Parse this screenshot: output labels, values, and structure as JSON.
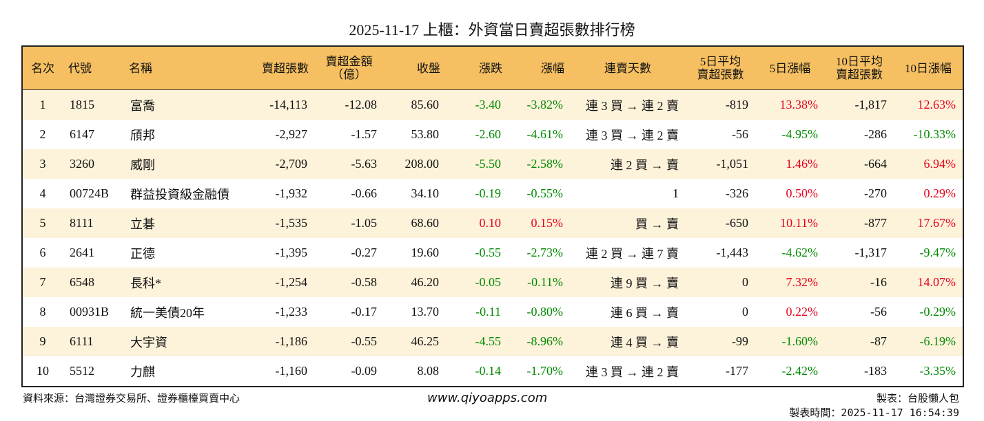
{
  "header": {
    "title": "2025-11-17 上櫃：外資當日賣超張數排行榜"
  },
  "colors": {
    "up": "#e8001c",
    "down": "#008a00"
  },
  "table": {
    "columns": [
      [
        "名次"
      ],
      [
        "代號"
      ],
      [
        "名稱"
      ],
      [
        "賣超張數"
      ],
      [
        "賣超金額",
        "（億）"
      ],
      [
        "收盤"
      ],
      [
        "漲跌"
      ],
      [
        "漲幅"
      ],
      [
        "連賣天數"
      ],
      [
        "5日平均",
        "賣超張數"
      ],
      [
        "5日漲幅"
      ],
      [
        "10日平均",
        "賣超張數"
      ],
      [
        "10日漲幅"
      ]
    ],
    "rows": [
      [
        "1",
        "1815",
        "富喬",
        "-14,113",
        "-12.08",
        "85.60",
        "-3.40",
        "-3.82%",
        "連 3 買 → 連 2 賣",
        "-819",
        "13.38%",
        "-1,817",
        "12.63%"
      ],
      [
        "2",
        "6147",
        "頎邦",
        "-2,927",
        "-1.57",
        "53.80",
        "-2.60",
        "-4.61%",
        "連 3 買 → 連 2 賣",
        "-56",
        "-4.95%",
        "-286",
        "-10.33%"
      ],
      [
        "3",
        "3260",
        "威剛",
        "-2,709",
        "-5.63",
        "208.00",
        "-5.50",
        "-2.58%",
        "連 2 買 → 賣",
        "-1,051",
        "1.46%",
        "-664",
        "6.94%"
      ],
      [
        "4",
        "00724B",
        "群益投資級金融債",
        "-1,932",
        "-0.66",
        "34.10",
        "-0.19",
        "-0.55%",
        "1",
        "-326",
        "0.50%",
        "-270",
        "0.29%"
      ],
      [
        "5",
        "8111",
        "立碁",
        "-1,535",
        "-1.05",
        "68.60",
        "0.10",
        "0.15%",
        "買 → 賣",
        "-650",
        "10.11%",
        "-877",
        "17.67%"
      ],
      [
        "6",
        "2641",
        "正德",
        "-1,395",
        "-0.27",
        "19.60",
        "-0.55",
        "-2.73%",
        "連 2 買 → 連 7 賣",
        "-1,443",
        "-4.62%",
        "-1,317",
        "-9.47%"
      ],
      [
        "7",
        "6548",
        "長科*",
        "-1,254",
        "-0.58",
        "46.20",
        "-0.05",
        "-0.11%",
        "連 9 買 → 賣",
        "0",
        "7.32%",
        "-16",
        "14.07%"
      ],
      [
        "8",
        "00931B",
        "統一美債20年",
        "-1,233",
        "-0.17",
        "13.70",
        "-0.11",
        "-0.80%",
        "連 6 買 → 賣",
        "0",
        "0.22%",
        "-56",
        "-0.29%"
      ],
      [
        "9",
        "6111",
        "大宇資",
        "-1,186",
        "-0.55",
        "46.25",
        "-4.55",
        "-8.96%",
        "連 4 買 → 賣",
        "-99",
        "-1.60%",
        "-87",
        "-6.19%"
      ],
      [
        "10",
        "5512",
        "力麒",
        "-1,160",
        "-0.09",
        "8.08",
        "-0.14",
        "-1.70%",
        "連 3 買 → 連 2 賣",
        "-177",
        "-2.42%",
        "-183",
        "-3.35%"
      ]
    ]
  },
  "footer": {
    "source": "資料來源：台灣證券交易所、證券櫃檯買賣中心",
    "site": "www.qiyoapps.com",
    "maker": "製表：台股懶人包",
    "time": "製表時間：2025-11-17 16:54:39"
  }
}
